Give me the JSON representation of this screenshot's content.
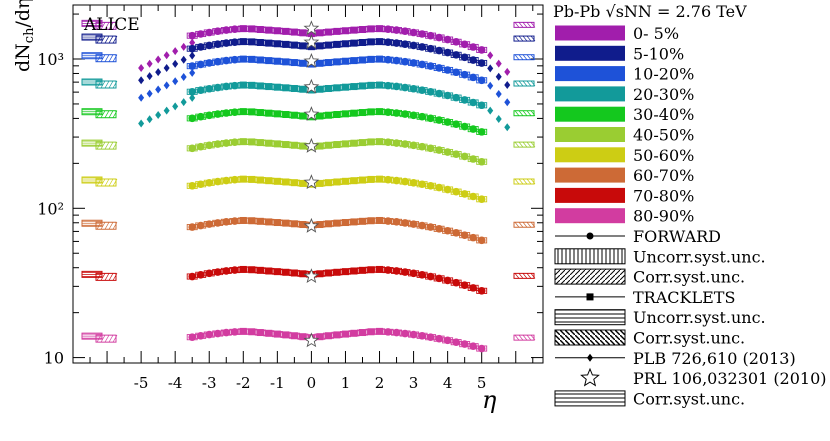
{
  "chart_data": {
    "type": "scatter",
    "experiment": "ALICE",
    "xlabel": "η",
    "ylabel": "dN_ch/dη",
    "ylog": true,
    "xlim": [
      -7,
      6.8
    ],
    "ylim": [
      9.2,
      2300
    ],
    "xticks": [
      -5,
      -4,
      -3,
      -2,
      -1,
      0,
      1,
      2,
      3,
      4,
      5
    ],
    "yticks": [
      {
        "value": 10,
        "label": "10"
      },
      {
        "value": 100,
        "label": "10²"
      },
      {
        "value": 1000,
        "label": "10³"
      }
    ],
    "legend": {
      "title": "Pb-Pb √sNN = 2.76 TeV",
      "entries": [
        {
          "label": "0- 5%",
          "color": "#a11eac",
          "kind": "fill"
        },
        {
          "label": "5-10%",
          "color": "#101c8c",
          "kind": "fill"
        },
        {
          "label": "10-20%",
          "color": "#1e52d8",
          "kind": "fill"
        },
        {
          "label": "20-30%",
          "color": "#129a9a",
          "kind": "fill"
        },
        {
          "label": "30-40%",
          "color": "#14c81e",
          "kind": "fill"
        },
        {
          "label": "40-50%",
          "color": "#9acd32",
          "kind": "fill"
        },
        {
          "label": "50-60%",
          "color": "#cdcd14",
          "kind": "fill"
        },
        {
          "label": "60-70%",
          "color": "#cd6a36",
          "kind": "fill"
        },
        {
          "label": "70-80%",
          "color": "#c80a0a",
          "kind": "fill"
        },
        {
          "label": "80-90%",
          "color": "#d23ca0",
          "kind": "fill"
        },
        {
          "label": "FORWARD",
          "kind": "circle-marker"
        },
        {
          "label": "Uncorr.syst.unc.",
          "kind": "vertical-hatch"
        },
        {
          "label": "Corr.syst.unc.",
          "kind": "diagonal-hatch"
        },
        {
          "label": "TRACKLETS",
          "kind": "square-marker"
        },
        {
          "label": "Uncorr.syst.unc.",
          "kind": "horizontal-hatch"
        },
        {
          "label": "Corr.syst.unc.",
          "kind": "cross-hatch"
        },
        {
          "label": "PLB 726,610 (2013)",
          "kind": "diamond-marker"
        },
        {
          "label": "PRL 106,032301 (2010)",
          "kind": "star-marker"
        },
        {
          "label": "Corr.syst.unc.",
          "kind": "horizontal-hatch"
        }
      ]
    },
    "series": [
      {
        "name": "0- 5%",
        "color": "#a11eac",
        "mid": 1600,
        "dip": 1480,
        "edge": 1150,
        "plb_start": 870
      },
      {
        "name": "5-10%",
        "color": "#101c8c",
        "mid": 1310,
        "dip": 1210,
        "edge": 940,
        "plb_start": 720
      },
      {
        "name": "10-20%",
        "color": "#1e52d8",
        "mid": 1000,
        "dip": 925,
        "edge": 720,
        "plb_start": 550
      },
      {
        "name": "20-30%",
        "color": "#129a9a",
        "mid": 670,
        "dip": 620,
        "edge": 490,
        "plb_start": 370
      },
      {
        "name": "30-40%",
        "color": "#14c81e",
        "mid": 445,
        "dip": 410,
        "edge": 325,
        "plb_start": null
      },
      {
        "name": "40-50%",
        "color": "#9acd32",
        "mid": 280,
        "dip": 258,
        "edge": 205,
        "plb_start": null
      },
      {
        "name": "50-60%",
        "color": "#cdcd14",
        "mid": 157,
        "dip": 145,
        "edge": 115,
        "plb_start": null
      },
      {
        "name": "60-70%",
        "color": "#cd6a36",
        "mid": 83,
        "dip": 77,
        "edge": 61,
        "plb_start": null
      },
      {
        "name": "70-80%",
        "color": "#c80a0a",
        "mid": 39,
        "dip": 36,
        "edge": 28,
        "plb_start": null
      },
      {
        "name": "80-90%",
        "color": "#d23ca0",
        "mid": 15,
        "dip": 13.6,
        "edge": 11.5,
        "plb_start": null
      }
    ],
    "prl_points": [
      {
        "x": 0,
        "y": 1601
      },
      {
        "x": 0,
        "y": 1294
      },
      {
        "x": 0,
        "y": 966
      },
      {
        "x": 0,
        "y": 649
      },
      {
        "x": 0,
        "y": 426
      },
      {
        "x": 0,
        "y": 261
      },
      {
        "x": 0,
        "y": 149
      },
      {
        "x": 0,
        "y": 76
      },
      {
        "x": 0,
        "y": 35
      },
      {
        "x": 0,
        "y": 13
      }
    ],
    "ends": [
      {
        "left": 1680,
        "right": 1680
      },
      {
        "left": 1360,
        "right": 1360
      },
      {
        "left": 1020,
        "right": 1020
      },
      {
        "left": 680,
        "right": 680
      },
      {
        "left": 430,
        "right": 430
      },
      {
        "left": 265,
        "right": 265
      },
      {
        "left": 150,
        "right": 150
      },
      {
        "left": 77,
        "right": 77
      },
      {
        "left": 35,
        "right": 35
      },
      {
        "left": 13.5,
        "right": 13.5
      }
    ]
  }
}
